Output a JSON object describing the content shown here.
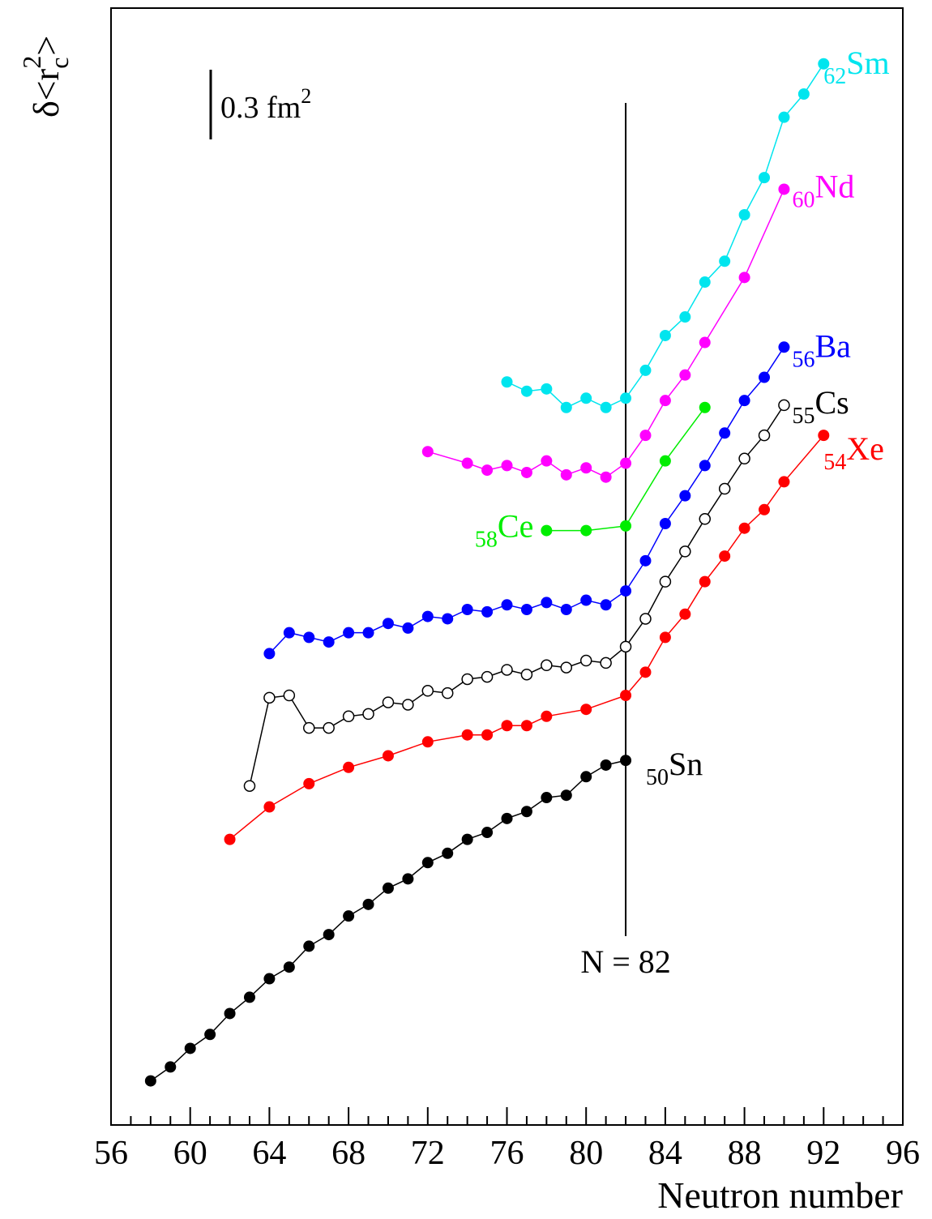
{
  "chart_data": {
    "type": "line",
    "xlabel": "Neutron number",
    "ylabel": [
      "δ<r",
      "c",
      "2",
      ">"
    ],
    "xlim": [
      56,
      96
    ],
    "xticks": [
      56,
      60,
      64,
      68,
      72,
      76,
      80,
      84,
      88,
      92,
      96
    ],
    "xminor": [
      57,
      58,
      59,
      61,
      62,
      63,
      65,
      66,
      67,
      69,
      70,
      71,
      73,
      74,
      75,
      77,
      78,
      79,
      81,
      82,
      83,
      85,
      86,
      87,
      89,
      90,
      91,
      93,
      94,
      95
    ],
    "ylim": [
      0,
      4.81
    ],
    "scale_bar": {
      "value": 0.3,
      "label": [
        "0.3 fm",
        "2"
      ]
    },
    "vline": {
      "x": 82,
      "label": "N = 82"
    },
    "series": [
      {
        "name": "Sn",
        "Z": 50,
        "color": "#000000",
        "marker": "filled",
        "x": [
          58,
          59,
          60,
          61,
          62,
          63,
          64,
          65,
          66,
          67,
          68,
          69,
          70,
          71,
          72,
          73,
          74,
          75,
          76,
          77,
          78,
          79,
          80,
          81,
          82
        ],
        "values": [
          0.19,
          0.25,
          0.33,
          0.39,
          0.48,
          0.55,
          0.63,
          0.68,
          0.77,
          0.82,
          0.9,
          0.95,
          1.02,
          1.06,
          1.13,
          1.17,
          1.23,
          1.26,
          1.32,
          1.35,
          1.41,
          1.42,
          1.5,
          1.55,
          1.57
        ]
      },
      {
        "name": "Xe",
        "Z": 54,
        "color": "#ff0000",
        "marker": "filled",
        "x": [
          62,
          64,
          66,
          68,
          70,
          72,
          74,
          75,
          76,
          77,
          78,
          80,
          82,
          83,
          84,
          85,
          86,
          87,
          88,
          89,
          90,
          92
        ],
        "values": [
          1.23,
          1.37,
          1.47,
          1.54,
          1.59,
          1.65,
          1.68,
          1.68,
          1.72,
          1.72,
          1.76,
          1.79,
          1.85,
          1.95,
          2.1,
          2.2,
          2.34,
          2.45,
          2.57,
          2.65,
          2.77,
          2.97
        ]
      },
      {
        "name": "Cs",
        "Z": 55,
        "color": "#000000",
        "marker": "open",
        "x": [
          63,
          64,
          65,
          66,
          67,
          68,
          69,
          70,
          71,
          72,
          73,
          74,
          75,
          76,
          77,
          78,
          79,
          80,
          81,
          82,
          83,
          84,
          85,
          86,
          87,
          88,
          89,
          90
        ],
        "values": [
          1.46,
          1.84,
          1.85,
          1.71,
          1.71,
          1.76,
          1.77,
          1.82,
          1.81,
          1.87,
          1.86,
          1.92,
          1.93,
          1.96,
          1.94,
          1.98,
          1.97,
          2.0,
          1.99,
          2.06,
          2.18,
          2.34,
          2.47,
          2.61,
          2.74,
          2.87,
          2.97,
          3.1
        ]
      },
      {
        "name": "Ba",
        "Z": 56,
        "color": "#0000ff",
        "marker": "filled",
        "x": [
          64,
          65,
          66,
          67,
          68,
          69,
          70,
          71,
          72,
          73,
          74,
          75,
          76,
          77,
          78,
          79,
          80,
          81,
          82,
          83,
          84,
          85,
          86,
          87,
          88,
          89,
          90
        ],
        "values": [
          2.03,
          2.12,
          2.1,
          2.08,
          2.12,
          2.12,
          2.16,
          2.14,
          2.19,
          2.18,
          2.22,
          2.21,
          2.24,
          2.22,
          2.25,
          2.22,
          2.26,
          2.24,
          2.3,
          2.43,
          2.59,
          2.71,
          2.84,
          2.98,
          3.12,
          3.22,
          3.35
        ]
      },
      {
        "name": "Ce",
        "Z": 58,
        "color": "#00ee00",
        "marker": "filled",
        "x": [
          78,
          80,
          82,
          84,
          86
        ],
        "values": [
          2.56,
          2.56,
          2.58,
          2.86,
          3.09
        ]
      },
      {
        "name": "Nd",
        "Z": 60,
        "color": "#ff00ff",
        "marker": "filled",
        "x": [
          72,
          74,
          75,
          76,
          77,
          78,
          79,
          80,
          81,
          82,
          83,
          84,
          85,
          86,
          88,
          90
        ],
        "values": [
          2.9,
          2.85,
          2.82,
          2.84,
          2.81,
          2.86,
          2.8,
          2.83,
          2.79,
          2.85,
          2.97,
          3.12,
          3.23,
          3.37,
          3.65,
          4.03
        ]
      },
      {
        "name": "Sm",
        "Z": 62,
        "color": "#00e5ee",
        "marker": "filled",
        "x": [
          76,
          77,
          78,
          79,
          80,
          81,
          82,
          83,
          84,
          85,
          86,
          87,
          88,
          89,
          90,
          91,
          92
        ],
        "values": [
          3.2,
          3.16,
          3.17,
          3.09,
          3.13,
          3.09,
          3.13,
          3.25,
          3.4,
          3.48,
          3.63,
          3.72,
          3.92,
          4.08,
          4.34,
          4.44,
          4.57
        ]
      }
    ]
  }
}
